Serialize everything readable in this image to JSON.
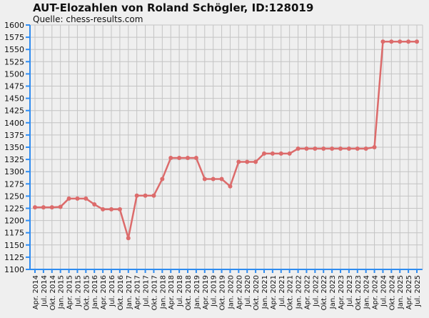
{
  "chart_data": {
    "type": "line",
    "title": "AUT-Elozahlen von Roland Schögler, ID:128019",
    "subtitle": "Quelle: chess-results.com",
    "xlabel": "",
    "ylabel": "",
    "ylim": [
      1100,
      1600
    ],
    "ytick_step": 25,
    "grid": true,
    "colors": {
      "line": "#dc6b6b",
      "axis": "#2f8cf0",
      "grid": "#c4c4c4",
      "background": "#efefef"
    },
    "categories": [
      "Apr. 2014",
      "Jul. 2014",
      "Okt. 2014",
      "Jan. 2015",
      "Apr. 2015",
      "Jul. 2015",
      "Okt. 2015",
      "Jan. 2016",
      "Apr. 2016",
      "Jul. 2016",
      "Okt. 2016",
      "Jan. 2017",
      "Apr. 2017",
      "Jul. 2017",
      "Okt. 2017",
      "Jan. 2018",
      "Apr. 2018",
      "Jul. 2018",
      "Okt. 2018",
      "Jan. 2019",
      "Apr. 2019",
      "Jul. 2019",
      "Okt. 2019",
      "Jan. 2020",
      "Apr. 2020",
      "Jul. 2020",
      "Okt. 2020",
      "Jan. 2021",
      "Apr. 2021",
      "Jul. 2021",
      "Okt. 2021",
      "Jan. 2022",
      "Apr. 2022",
      "Jul. 2022",
      "Okt. 2022",
      "Jan. 2023",
      "Apr. 2023",
      "Jul. 2023",
      "Okt. 2023",
      "Jan. 2024",
      "Apr. 2024",
      "Jul. 2024",
      "Okt. 2024",
      "Jan. 2025",
      "Apr. 2025",
      "Jul. 2025"
    ],
    "series": [
      {
        "values": [
          1227,
          1227,
          1227,
          1228,
          1245,
          1245,
          1245,
          1233,
          1223,
          1223,
          1223,
          1164,
          1251,
          1251,
          1251,
          1285,
          1328,
          1328,
          1328,
          1328,
          1285,
          1285,
          1285,
          1270,
          1320,
          1320,
          1320,
          1337,
          1337,
          1337,
          1337,
          1347,
          1347,
          1347,
          1347,
          1347,
          1347,
          1347,
          1347,
          1347,
          1350,
          1566,
          1566,
          1566,
          1566,
          1566
        ]
      }
    ]
  }
}
